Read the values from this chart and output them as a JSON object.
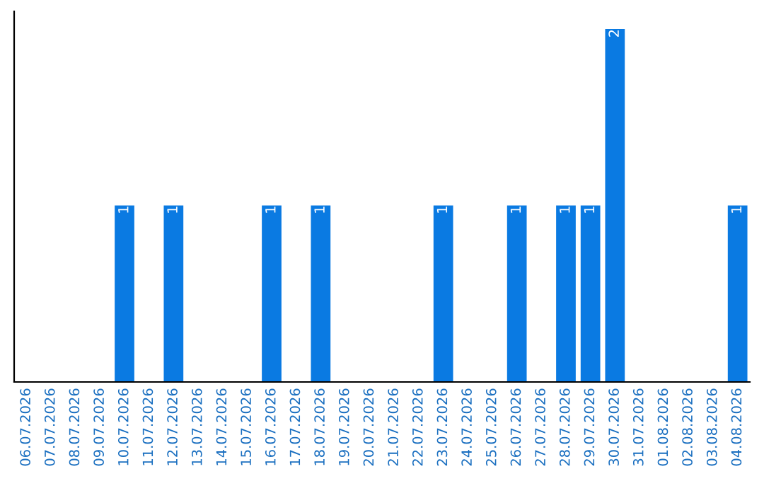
{
  "chart_data": {
    "type": "bar",
    "categories": [
      "06.07.2026",
      "07.07.2026",
      "08.07.2026",
      "09.07.2026",
      "10.07.2026",
      "11.07.2026",
      "12.07.2026",
      "13.07.2026",
      "14.07.2026",
      "15.07.2026",
      "16.07.2026",
      "17.07.2026",
      "18.07.2026",
      "19.07.2026",
      "20.07.2026",
      "21.07.2026",
      "22.07.2026",
      "23.07.2026",
      "24.07.2026",
      "25.07.2026",
      "26.07.2026",
      "27.07.2026",
      "28.07.2026",
      "29.07.2026",
      "30.07.2026",
      "31.07.2026",
      "01.08.2026",
      "02.08.2026",
      "03.08.2026",
      "04.08.2026"
    ],
    "values": [
      0,
      0,
      0,
      0,
      1,
      0,
      1,
      0,
      0,
      0,
      1,
      0,
      1,
      0,
      0,
      0,
      0,
      1,
      0,
      0,
      1,
      0,
      1,
      1,
      2,
      0,
      0,
      0,
      0,
      1
    ],
    "value_labels": [
      null,
      null,
      null,
      null,
      "1",
      null,
      "1",
      null,
      null,
      null,
      "1",
      null,
      "1",
      null,
      null,
      null,
      null,
      "1",
      null,
      null,
      "1",
      null,
      "1",
      "1",
      "2",
      null,
      null,
      null,
      null,
      "1"
    ],
    "color": "#0a7ae2",
    "grid": false,
    "legend": false
  }
}
